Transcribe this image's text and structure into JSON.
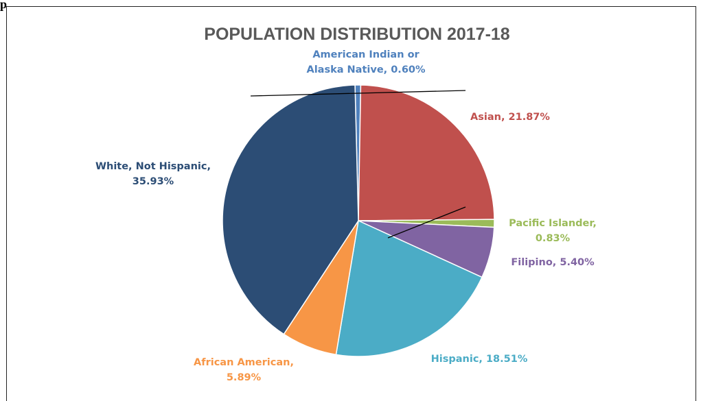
{
  "header_fragment": "p",
  "chart_data": {
    "type": "pie",
    "title": "POPULATION DISTRIBUTION 2017-18",
    "slices": [
      {
        "label_lines": [
          "American Indian or",
          "Alaska Native, 0.60%"
        ],
        "value": 0.6,
        "color": "#4f81bd"
      },
      {
        "label_lines": [
          "Asian, 21.87%"
        ],
        "value": 21.87,
        "color": "#c0504d"
      },
      {
        "label_lines": [
          "Pacific Islander,",
          "0.83%"
        ],
        "value": 0.83,
        "color": "#9bbb59"
      },
      {
        "label_lines": [
          "Filipino, 5.40%"
        ],
        "value": 5.4,
        "color": "#8064a2"
      },
      {
        "label_lines": [
          "Hispanic, 18.51%"
        ],
        "value": 18.51,
        "color": "#4bacc6"
      },
      {
        "label_lines": [
          "African American,",
          "5.89%"
        ],
        "value": 5.89,
        "color": "#f79646"
      },
      {
        "label_lines": [
          "White, Not Hispanic,",
          "35.93%"
        ],
        "value": 35.93,
        "color": "#2c4d75"
      }
    ],
    "legend": "none"
  }
}
